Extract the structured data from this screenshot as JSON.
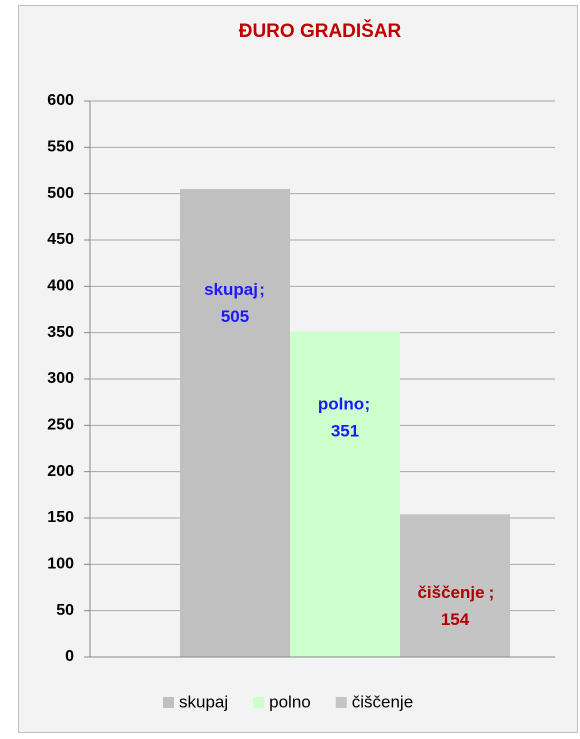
{
  "chart_data": {
    "type": "bar",
    "title": "ĐURO GRADIŠAR",
    "series": [
      {
        "name": "skupaj",
        "color": "#c0c0c0",
        "label_color": "#1a1aff",
        "values": [
          505
        ]
      },
      {
        "name": "polno",
        "color": "#ccffcc",
        "label_color": "#1a1aff",
        "values": [
          351
        ]
      },
      {
        "name": "čiščenje",
        "color": "#c4c4c4",
        "label_color": "#b00000",
        "values": [
          154
        ]
      }
    ],
    "ylim": [
      0,
      600
    ],
    "yticks": [
      0,
      50,
      100,
      150,
      200,
      250,
      300,
      350,
      400,
      450,
      500,
      550,
      600
    ],
    "grid": true,
    "legend": "bottom",
    "title_color": "#c00000"
  }
}
